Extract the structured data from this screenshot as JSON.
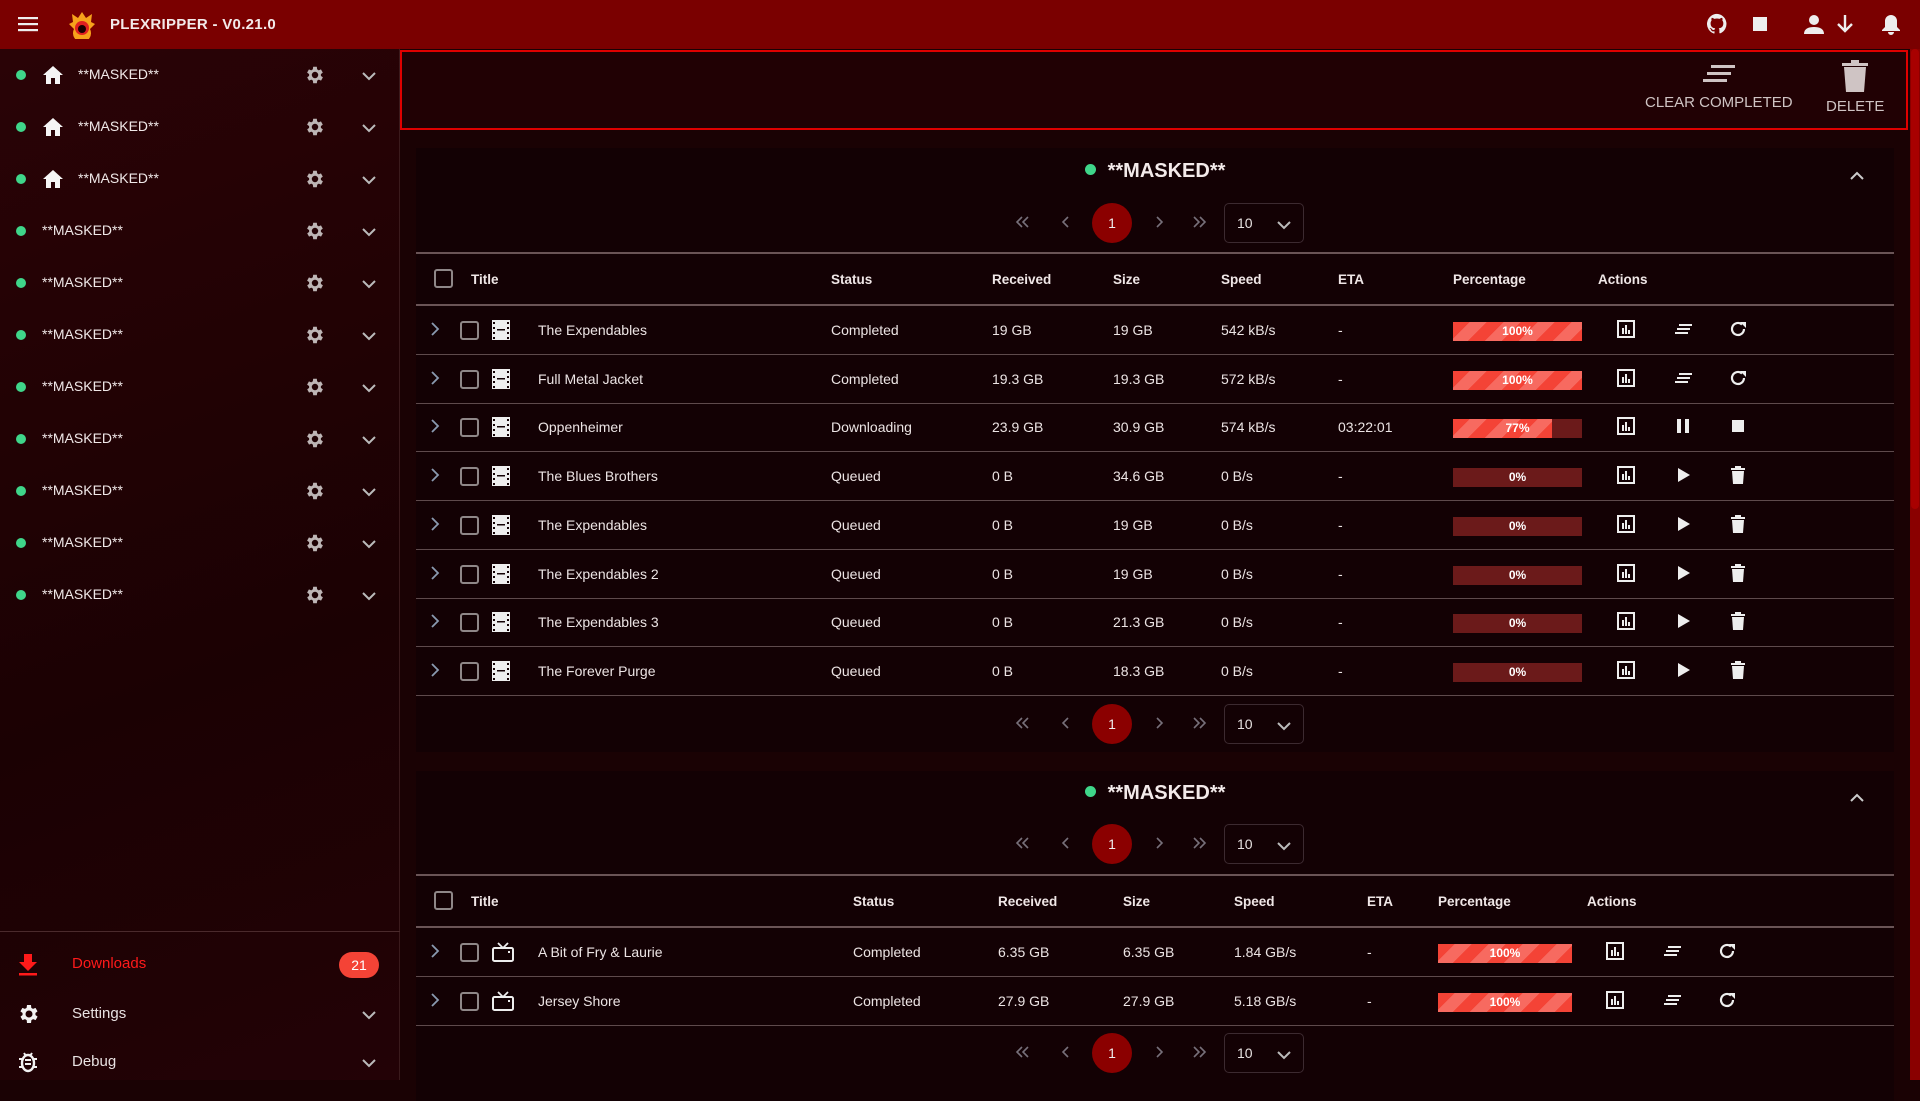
{
  "app": {
    "title": "PLEXRIPPER - V0.21.0"
  },
  "topbar_icons": [
    "github-icon",
    "stop-icon",
    "account-icon",
    "download-arrow-icon",
    "bell-icon"
  ],
  "sidebar": {
    "servers": [
      {
        "label": "**MASKED**",
        "home": true
      },
      {
        "label": "**MASKED**",
        "home": true
      },
      {
        "label": "**MASKED**",
        "home": true
      },
      {
        "label": "**MASKED**",
        "home": false
      },
      {
        "label": "**MASKED**",
        "home": false
      },
      {
        "label": "**MASKED**",
        "home": false
      },
      {
        "label": "**MASKED**",
        "home": false
      },
      {
        "label": "**MASKED**",
        "home": false
      },
      {
        "label": "**MASKED**",
        "home": false
      },
      {
        "label": "**MASKED**",
        "home": false
      },
      {
        "label": "**MASKED**",
        "home": false
      }
    ],
    "downloads": {
      "label": "Downloads",
      "badge": "21"
    },
    "settings": {
      "label": "Settings"
    },
    "debug": {
      "label": "Debug"
    }
  },
  "toolbar": {
    "clear_completed": "CLEAR COMPLETED",
    "delete": "DELETE"
  },
  "colors": {
    "accent": "#7a0000",
    "progress": "#f44336",
    "online": "#3fd68a",
    "active_nav": "#ff1a1a"
  },
  "cards": [
    {
      "title": "**MASKED**",
      "pagination": {
        "page": "1",
        "per_page": "10"
      },
      "headers": {
        "title": "Title",
        "status": "Status",
        "received": "Received",
        "size": "Size",
        "speed": "Speed",
        "eta": "ETA",
        "percentage": "Percentage",
        "actions": "Actions"
      },
      "media_icon": "movie-icon",
      "rows": [
        {
          "title": "The Expendables",
          "status": "Completed",
          "received": "19 GB",
          "size": "19 GB",
          "speed": "542 kB/s",
          "eta": "-",
          "percent": 100,
          "percent_label": "100%",
          "actions": [
            "details-icon",
            "clear-icon",
            "restart-icon"
          ]
        },
        {
          "title": "Full Metal Jacket",
          "status": "Completed",
          "received": "19.3 GB",
          "size": "19.3 GB",
          "speed": "572 kB/s",
          "eta": "-",
          "percent": 100,
          "percent_label": "100%",
          "actions": [
            "details-icon",
            "clear-icon",
            "restart-icon"
          ]
        },
        {
          "title": "Oppenheimer",
          "status": "Downloading",
          "received": "23.9 GB",
          "size": "30.9 GB",
          "speed": "574 kB/s",
          "eta": "03:22:01",
          "percent": 77,
          "percent_label": "77%",
          "actions": [
            "details-icon",
            "pause-icon",
            "stop-icon"
          ]
        },
        {
          "title": "The Blues Brothers",
          "status": "Queued",
          "received": "0 B",
          "size": "34.6 GB",
          "speed": "0 B/s",
          "eta": "-",
          "percent": 0,
          "percent_label": "0%",
          "actions": [
            "details-icon",
            "play-icon",
            "delete-icon"
          ]
        },
        {
          "title": "The Expendables",
          "status": "Queued",
          "received": "0 B",
          "size": "19 GB",
          "speed": "0 B/s",
          "eta": "-",
          "percent": 0,
          "percent_label": "0%",
          "actions": [
            "details-icon",
            "play-icon",
            "delete-icon"
          ]
        },
        {
          "title": "The Expendables 2",
          "status": "Queued",
          "received": "0 B",
          "size": "19 GB",
          "speed": "0 B/s",
          "eta": "-",
          "percent": 0,
          "percent_label": "0%",
          "actions": [
            "details-icon",
            "play-icon",
            "delete-icon"
          ]
        },
        {
          "title": "The Expendables 3",
          "status": "Queued",
          "received": "0 B",
          "size": "21.3 GB",
          "speed": "0 B/s",
          "eta": "-",
          "percent": 0,
          "percent_label": "0%",
          "actions": [
            "details-icon",
            "play-icon",
            "delete-icon"
          ]
        },
        {
          "title": "The Forever Purge",
          "status": "Queued",
          "received": "0 B",
          "size": "18.3 GB",
          "speed": "0 B/s",
          "eta": "-",
          "percent": 0,
          "percent_label": "0%",
          "actions": [
            "details-icon",
            "play-icon",
            "delete-icon"
          ]
        }
      ]
    },
    {
      "title": "**MASKED**",
      "pagination": {
        "page": "1",
        "per_page": "10"
      },
      "headers": {
        "title": "Title",
        "status": "Status",
        "received": "Received",
        "size": "Size",
        "speed": "Speed",
        "eta": "ETA",
        "percentage": "Percentage",
        "actions": "Actions"
      },
      "media_icon": "tv-show-icon",
      "rows": [
        {
          "title": "A Bit of Fry & Laurie",
          "status": "Completed",
          "received": "6.35 GB",
          "size": "6.35 GB",
          "speed": "1.84 GB/s",
          "eta": "-",
          "percent": 100,
          "percent_label": "100%",
          "actions": [
            "details-icon",
            "clear-icon",
            "restart-icon"
          ]
        },
        {
          "title": "Jersey Shore",
          "status": "Completed",
          "received": "27.9 GB",
          "size": "27.9 GB",
          "speed": "5.18 GB/s",
          "eta": "-",
          "percent": 100,
          "percent_label": "100%",
          "actions": [
            "details-icon",
            "clear-icon",
            "restart-icon"
          ]
        }
      ]
    }
  ]
}
